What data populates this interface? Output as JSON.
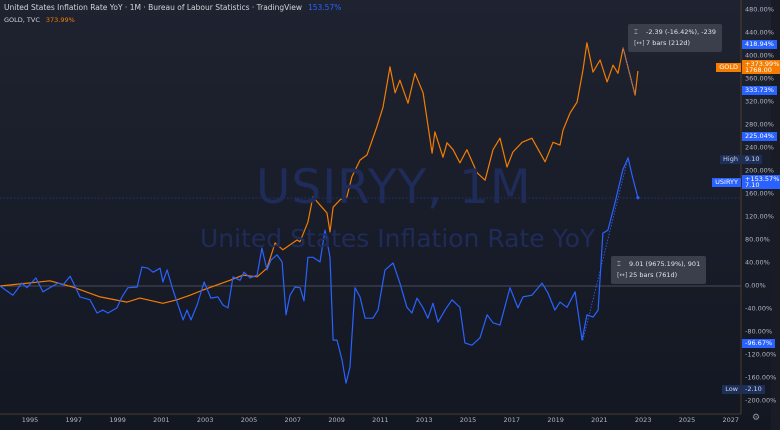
{
  "header": {
    "title": "United States Inflation Rate YoY · 1M · Bureau of Labour Statistics · TradingView",
    "title_value": "153.57%",
    "gold_label": "GOLD, TVC",
    "gold_value": "373.99%"
  },
  "watermark": {
    "symbol": "USIRYY, 1M",
    "description": "United States Inflation Rate YoY"
  },
  "price_badges": {
    "blue_top": "418.94%",
    "gold_name": "GOLD",
    "gold_pct": "+373.99%",
    "gold_price": "1768.00",
    "blue_mid": "333.73%",
    "blue_high_pct": "225.04%",
    "high_label": "High",
    "high_value": "9.10",
    "usiryy_name": "USIRYY",
    "usiryy_pct": "+153.57%",
    "usiryy_price": "7.10",
    "blue_low_pct": "-96.67%",
    "low_label": "Low",
    "low_value": "-2.10"
  },
  "measure_tooltips": [
    {
      "change": "-2.39 (-16.42%), -239",
      "range": "7 bars (212d)"
    },
    {
      "change": "9.01 (9675.19%), 901",
      "range": "25 bars (761d)"
    }
  ],
  "colors": {
    "usiryy": "#2962ff",
    "gold": "#f57c00",
    "background": "#1a1e2b"
  },
  "icons": {
    "measure": "measure-height-icon",
    "range": "bars-range-icon",
    "settings": "gear-icon"
  },
  "chart_data": {
    "type": "line",
    "percent_scale": true,
    "ylim": [
      -200,
      480
    ],
    "y_ticks": [
      "480.00%",
      "440.00%",
      "400.00%",
      "360.00%",
      "320.00%",
      "280.00%",
      "240.00%",
      "200.00%",
      "160.00%",
      "120.00%",
      "80.00%",
      "40.00%",
      "0.00%",
      "-40.00%",
      "-80.00%",
      "-120.00%",
      "-160.00%",
      "-200.00%"
    ],
    "x_ticks": [
      "1995",
      "1997",
      "1999",
      "2001",
      "2003",
      "2005",
      "2007",
      "2009",
      "2011",
      "2013",
      "2015",
      "2017",
      "2019",
      "2021",
      "2023",
      "2025",
      "2027"
    ],
    "grid": false,
    "series": [
      {
        "name": "GOLD, TVC",
        "color": "#f57c00",
        "x": [
          1993.63,
          1995.91,
          1996.96,
          1998.2,
          1999.43,
          2000.02,
          2001.07,
          2001.71,
          2002.31,
          2002.9,
          2003.54,
          2004.13,
          2004.73,
          2005.37,
          2005.82,
          2006.19,
          2006.55,
          2007.19,
          2007.33,
          2007.69,
          2007.92,
          2008.33,
          2008.56,
          2008.7,
          2008.84,
          2009.16,
          2009.47,
          2009.7,
          2010.07,
          2010.39,
          2010.84,
          2011.12,
          2011.44,
          2011.67,
          2011.89,
          2012.26,
          2012.58,
          2012.95,
          2013.36,
          2013.49,
          2013.86,
          2014.04,
          2014.32,
          2014.63,
          2014.95,
          2015.41,
          2015.78,
          2016.14,
          2016.46,
          2016.78,
          2017.05,
          2017.47,
          2017.92,
          2018.52,
          2018.88,
          2019.2,
          2019.34,
          2019.66,
          2019.98,
          2020.25,
          2020.43,
          2020.71,
          2021.03,
          2021.35,
          2021.62,
          2021.85,
          2022.08,
          2022.63,
          2022.76
        ],
        "y": [
          0,
          9,
          -2,
          -19,
          -28,
          -21,
          -30,
          -24,
          -16,
          -7,
          2,
          10,
          19,
          16,
          31,
          75,
          63,
          80,
          77,
          111,
          155,
          137,
          127,
          94,
          137,
          150,
          155,
          190,
          219,
          228,
          277,
          311,
          381,
          336,
          358,
          318,
          370,
          336,
          231,
          268,
          224,
          249,
          237,
          214,
          237,
          197,
          184,
          237,
          257,
          207,
          233,
          250,
          257,
          216,
          250,
          245,
          271,
          301,
          320,
          376,
          423,
          372,
          393,
          355,
          384,
          370,
          414,
          332,
          373.99
        ]
      },
      {
        "name": "USIRYY",
        "color": "#2962ff",
        "x": [
          1993.63,
          1994.22,
          1994.63,
          1994.86,
          1995.27,
          1995.59,
          1995.91,
          1996.28,
          1996.51,
          1996.83,
          1997.05,
          1997.28,
          1997.74,
          1998.06,
          1998.33,
          1998.56,
          1998.97,
          1999.2,
          1999.47,
          1999.89,
          2000.11,
          2000.39,
          2000.62,
          2000.94,
          2001.07,
          2001.26,
          2001.53,
          2001.99,
          2002.17,
          2002.35,
          2002.63,
          2002.95,
          2003.26,
          2003.58,
          2003.81,
          2004.04,
          2004.27,
          2004.59,
          2004.77,
          2005.05,
          2005.37,
          2005.59,
          2005.82,
          2006.0,
          2006.28,
          2006.51,
          2006.69,
          2006.87,
          2007.1,
          2007.33,
          2007.51,
          2007.69,
          2007.92,
          2008.24,
          2008.47,
          2008.7,
          2008.84,
          2009.02,
          2009.25,
          2009.43,
          2009.61,
          2009.84,
          2010.07,
          2010.3,
          2010.66,
          2010.89,
          2011.21,
          2011.58,
          2011.89,
          2012.21,
          2012.44,
          2012.67,
          2012.95,
          2013.17,
          2013.4,
          2013.63,
          2013.95,
          2014.27,
          2014.63,
          2014.86,
          2015.18,
          2015.55,
          2015.87,
          2016.14,
          2016.46,
          2016.92,
          2017.28,
          2017.51,
          2017.92,
          2018.38,
          2018.65,
          2018.97,
          2019.2,
          2019.52,
          2019.89,
          2020.21,
          2020.43,
          2020.71,
          2020.94,
          2021.16,
          2021.39,
          2021.71,
          2022.07,
          2022.31,
          2022.49,
          2022.76
        ],
        "y": [
          0,
          -16,
          5,
          -3,
          14,
          -10,
          -3,
          5,
          2,
          17,
          0,
          -19,
          -24,
          -47,
          -42,
          -47,
          -38,
          -19,
          -3,
          -2,
          33,
          31,
          24,
          31,
          7,
          28,
          -7,
          -59,
          -42,
          -59,
          -33,
          7,
          -21,
          -19,
          -33,
          -38,
          16,
          10,
          24,
          14,
          19,
          66,
          28,
          45,
          54,
          42,
          -50,
          -16,
          -2,
          -3,
          -26,
          50,
          50,
          42,
          97,
          50,
          -94,
          -94,
          -129,
          -169,
          -141,
          -3,
          -19,
          -56,
          -56,
          -42,
          28,
          40,
          5,
          -37,
          -47,
          -21,
          -38,
          -56,
          -30,
          -63,
          -42,
          -24,
          -37,
          -99,
          -103,
          -90,
          -50,
          -64,
          -68,
          -3,
          -38,
          -19,
          -16,
          5,
          -12,
          -42,
          -28,
          -37,
          -10,
          -94,
          -50,
          -54,
          -42,
          92,
          97,
          144,
          202,
          223,
          193,
          153.57
        ]
      }
    ]
  }
}
